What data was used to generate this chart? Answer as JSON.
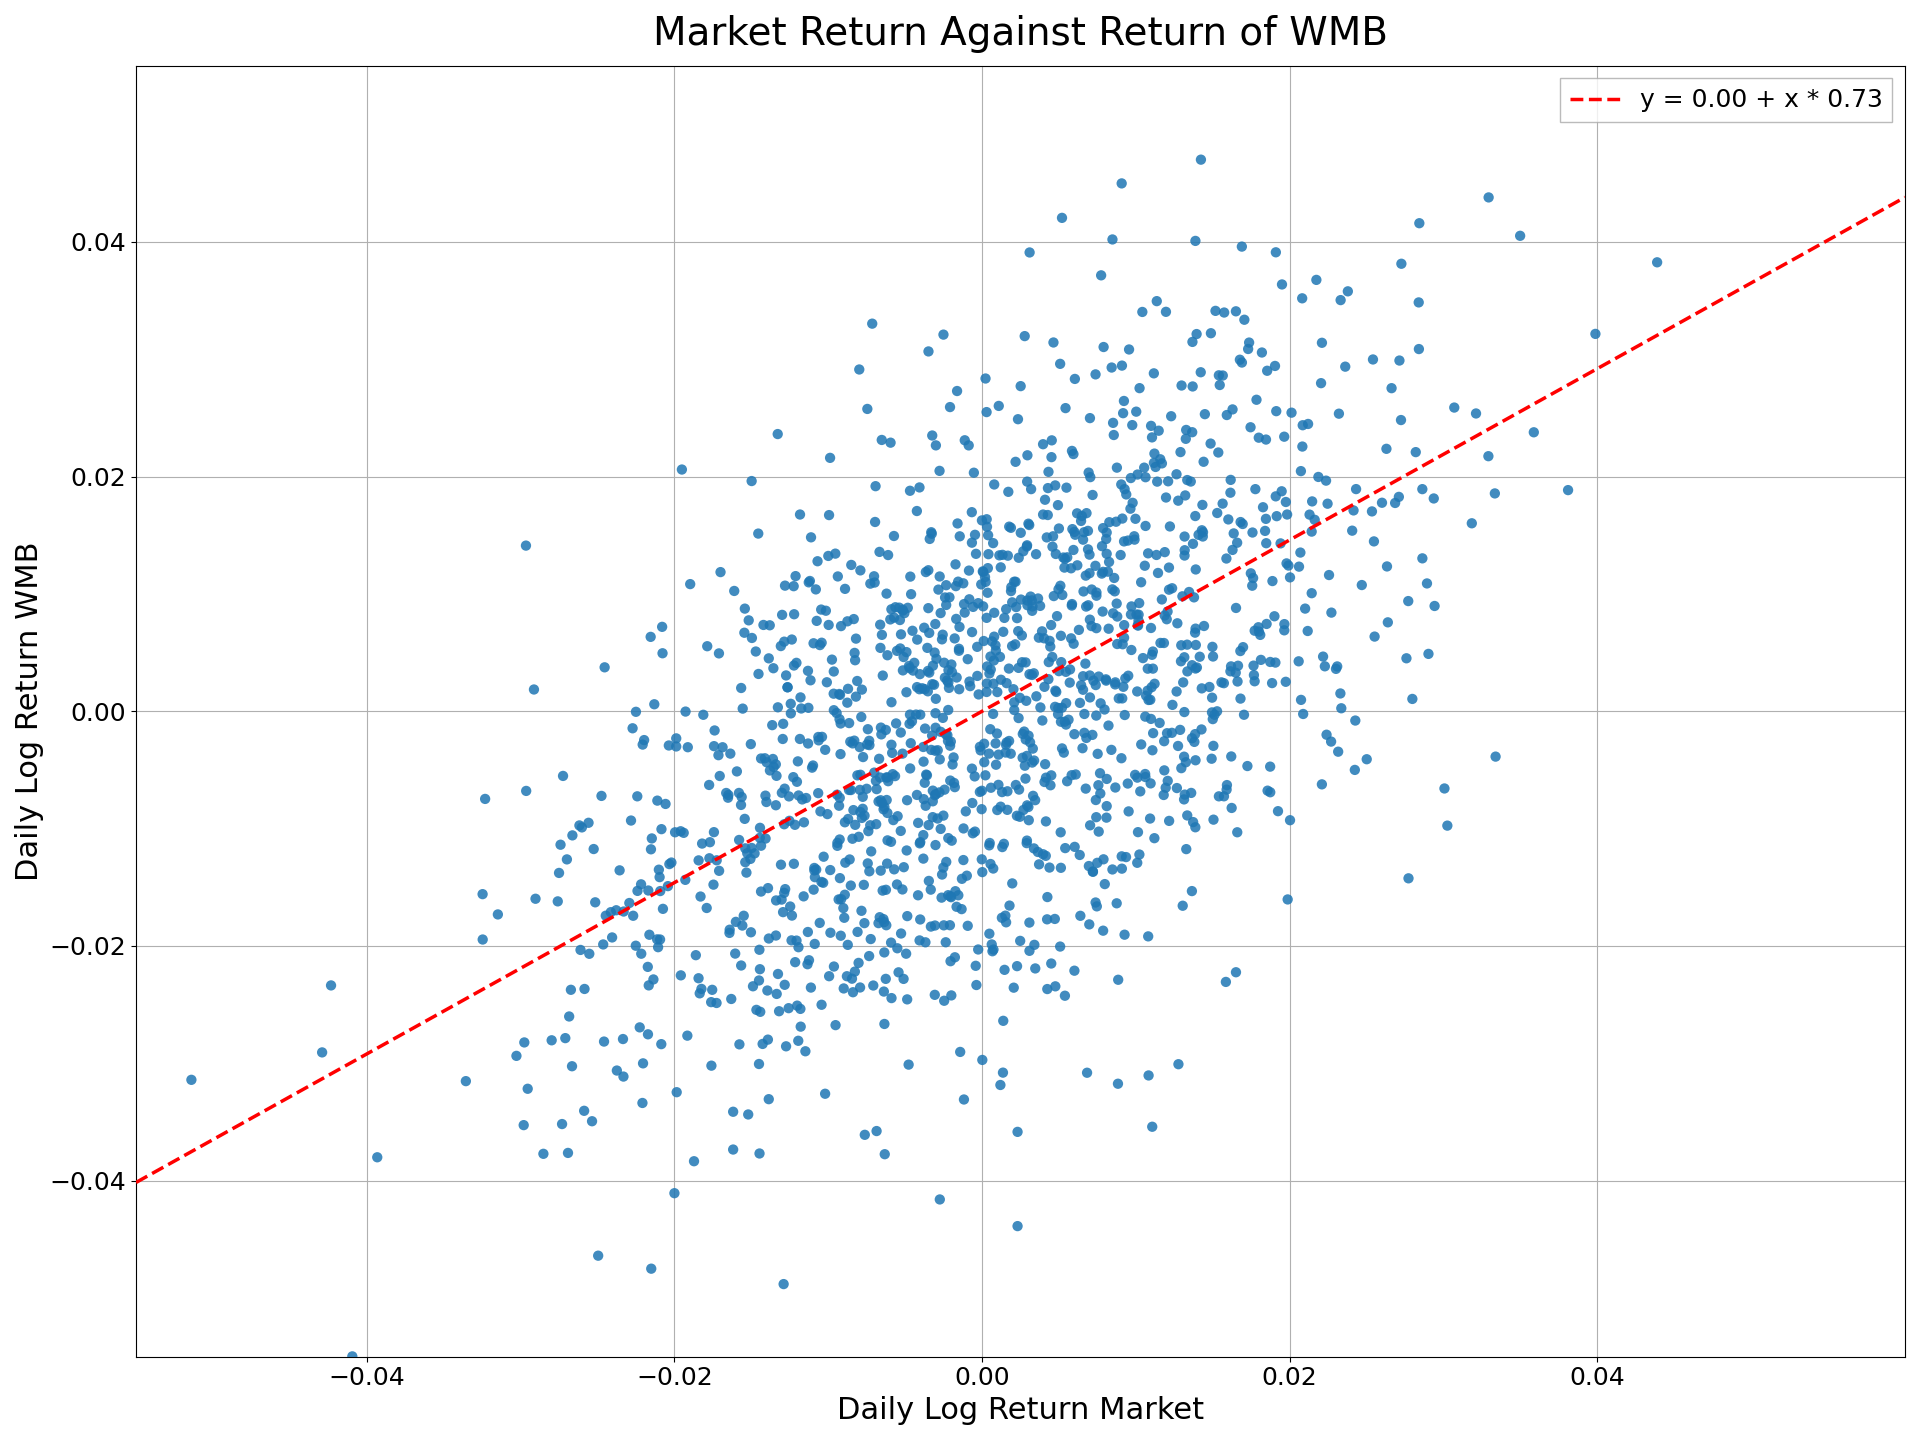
{
  "title": "Market Return Against Return of WMB",
  "xlabel": "Daily Log Return Market",
  "ylabel": "Daily Log Return WMB",
  "legend_label": "y = 0.00 + x * 0.73",
  "scatter_color": "#1f77b4",
  "line_color": "#ff0000",
  "intercept": 0.0,
  "slope": 0.73,
  "xlim": [
    -0.055,
    0.06
  ],
  "ylim": [
    -0.055,
    0.055
  ],
  "xticks": [
    -0.04,
    -0.02,
    0.0,
    0.02,
    0.04
  ],
  "yticks": [
    -0.04,
    -0.02,
    0.0,
    0.02,
    0.04
  ],
  "n_points": 1500,
  "market_std": 0.013,
  "wmb_std": 0.016,
  "correlation": 0.55,
  "random_seed": 7,
  "marker_size": 55,
  "alpha": 0.85,
  "title_fontsize": 28,
  "label_fontsize": 22,
  "tick_fontsize": 18,
  "legend_fontsize": 18,
  "background_color": "#ffffff",
  "grid_color": "#b0b0b0",
  "grid_linewidth": 0.8,
  "fig_width": 19.2,
  "fig_height": 14.4,
  "dpi": 100
}
